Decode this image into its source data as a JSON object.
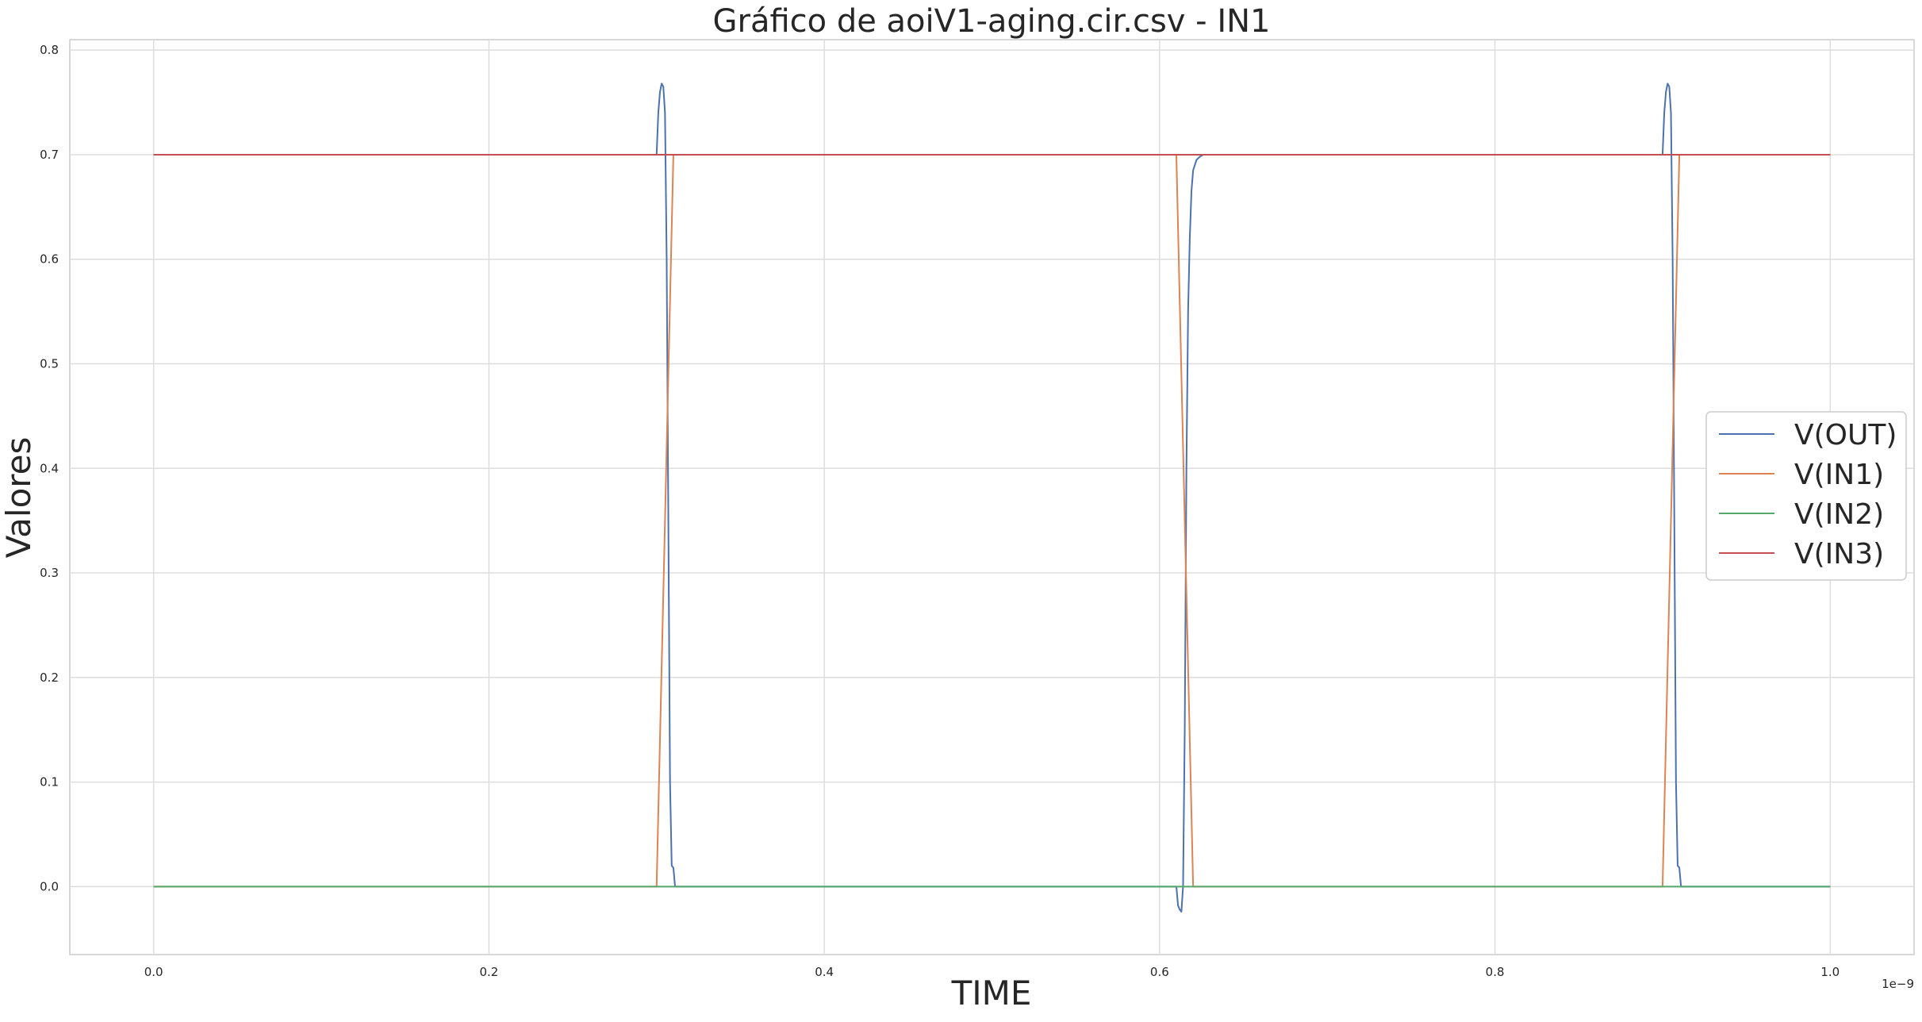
{
  "chart_data": {
    "type": "line",
    "title": "Gráfico de aoiV1-aging.cir.csv - IN1",
    "xlabel": "TIME",
    "ylabel": "Valores",
    "x_offset_label": "1e−9",
    "xlim": [
      -0.05,
      1.05
    ],
    "ylim": [
      -0.065,
      0.81
    ],
    "x_ticks": [
      0.0,
      0.2,
      0.4,
      0.6,
      0.8,
      1.0
    ],
    "x_tick_labels": [
      "0.0",
      "0.2",
      "0.4",
      "0.6",
      "0.8",
      "1.0"
    ],
    "y_ticks": [
      0.0,
      0.1,
      0.2,
      0.3,
      0.4,
      0.5,
      0.6,
      0.7,
      0.8
    ],
    "y_tick_labels": [
      "0.0",
      "0.1",
      "0.2",
      "0.3",
      "0.4",
      "0.5",
      "0.6",
      "0.7",
      "0.8"
    ],
    "grid": true,
    "legend_position": "center-right",
    "series": [
      {
        "name": "V(OUT)",
        "color": "#4c72b0",
        "x": [
          0.0,
          0.3,
          0.301,
          0.302,
          0.303,
          0.304,
          0.305,
          0.306,
          0.307,
          0.308,
          0.309,
          0.31,
          0.311,
          0.6,
          0.61,
          0.611,
          0.612,
          0.613,
          0.614,
          0.615,
          0.616,
          0.617,
          0.618,
          0.619,
          0.62,
          0.622,
          0.624,
          0.626,
          0.63,
          0.9,
          0.901,
          0.902,
          0.903,
          0.904,
          0.905,
          0.906,
          0.907,
          0.908,
          0.909,
          0.91,
          0.911,
          1.0
        ],
        "y": [
          0.7,
          0.7,
          0.74,
          0.76,
          0.768,
          0.765,
          0.74,
          0.6,
          0.35,
          0.1,
          0.02,
          0.018,
          0.0,
          0.0,
          0.0,
          -0.018,
          -0.022,
          -0.024,
          0.0,
          0.15,
          0.4,
          0.55,
          0.62,
          0.665,
          0.685,
          0.695,
          0.698,
          0.7,
          0.7,
          0.7,
          0.74,
          0.76,
          0.768,
          0.765,
          0.74,
          0.6,
          0.35,
          0.1,
          0.02,
          0.018,
          0.0,
          0.0
        ]
      },
      {
        "name": "V(IN1)",
        "color": "#dd8452",
        "x": [
          0.0,
          0.3,
          0.31,
          0.61,
          0.62,
          0.9,
          0.91,
          1.0
        ],
        "y": [
          0.0,
          0.0,
          0.7,
          0.7,
          0.0,
          0.0,
          0.7,
          0.7
        ]
      },
      {
        "name": "V(IN2)",
        "color": "#55a868",
        "x": [
          0.0,
          1.0
        ],
        "y": [
          0.0,
          0.0
        ]
      },
      {
        "name": "V(IN3)",
        "color": "#c44e52",
        "x": [
          0.0,
          1.0
        ],
        "y": [
          0.7,
          0.7
        ]
      }
    ]
  }
}
